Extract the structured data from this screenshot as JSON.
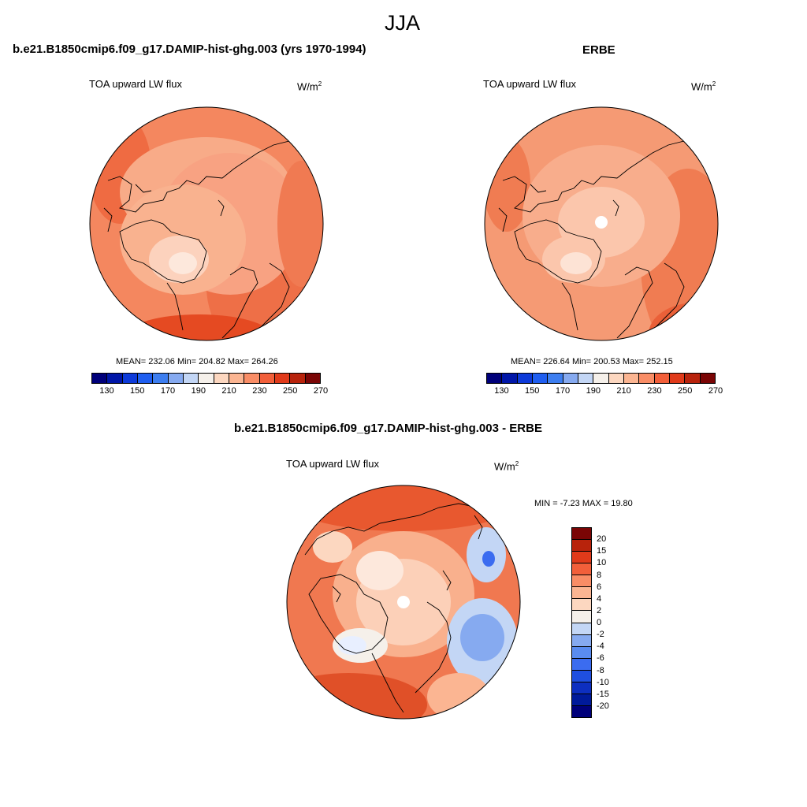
{
  "page_title": "JJA",
  "panels": [
    {
      "heading": "b.e21.B1850cmip6.f09_g17.DAMIP-hist-ghg.003 (yrs 1970-1994)",
      "variable": "TOA upward LW flux",
      "units_base": "W/m",
      "units_exp": "2",
      "stats": "MEAN= 232.06  Min= 204.82  Max= 264.26"
    },
    {
      "heading": "ERBE",
      "variable": "TOA upward LW flux",
      "units_base": "W/m",
      "units_exp": "2",
      "stats": "MEAN= 226.64  Min= 200.53  Max= 252.15"
    },
    {
      "heading": "b.e21.B1850cmip6.f09_g17.DAMIP-hist-ghg.003 - ERBE",
      "variable": "TOA upward LW flux",
      "units_base": "W/m",
      "units_exp": "2",
      "stats": "MIN =  -7.23 MAX =  19.80"
    }
  ],
  "abs_colorbar": {
    "colors": [
      "#00007a",
      "#0016a8",
      "#0d3ad9",
      "#1f5ef0",
      "#3d7ef0",
      "#86aaf0",
      "#c3d6f5",
      "#f5f0ea",
      "#fcd7c0",
      "#fbb592",
      "#f98d66",
      "#f25f3a",
      "#e03a1a",
      "#b8230c",
      "#7a0505"
    ],
    "labels": [
      "130",
      "150",
      "170",
      "190",
      "210",
      "230",
      "250",
      "270"
    ]
  },
  "diff_colorbar": {
    "colors": [
      "#7a0505",
      "#b8230c",
      "#e03a1a",
      "#f25f3a",
      "#f98d66",
      "#fbb592",
      "#fcd7c0",
      "#f5f0ea",
      "#c3d6f5",
      "#86aaf0",
      "#5a8cf0",
      "#3b6cf0",
      "#1f4fe0",
      "#0d2fc0",
      "#001a9a",
      "#00007a"
    ],
    "labels": [
      "20",
      "15",
      "10",
      "8",
      "6",
      "4",
      "2",
      "0",
      "-2",
      "-4",
      "-6",
      "-8",
      "-10",
      "-15",
      "-20"
    ]
  },
  "map_colors": {
    "bg_left": "#f3855d",
    "bg_right": "#f59a74",
    "bg_diff": "#f07850"
  }
}
